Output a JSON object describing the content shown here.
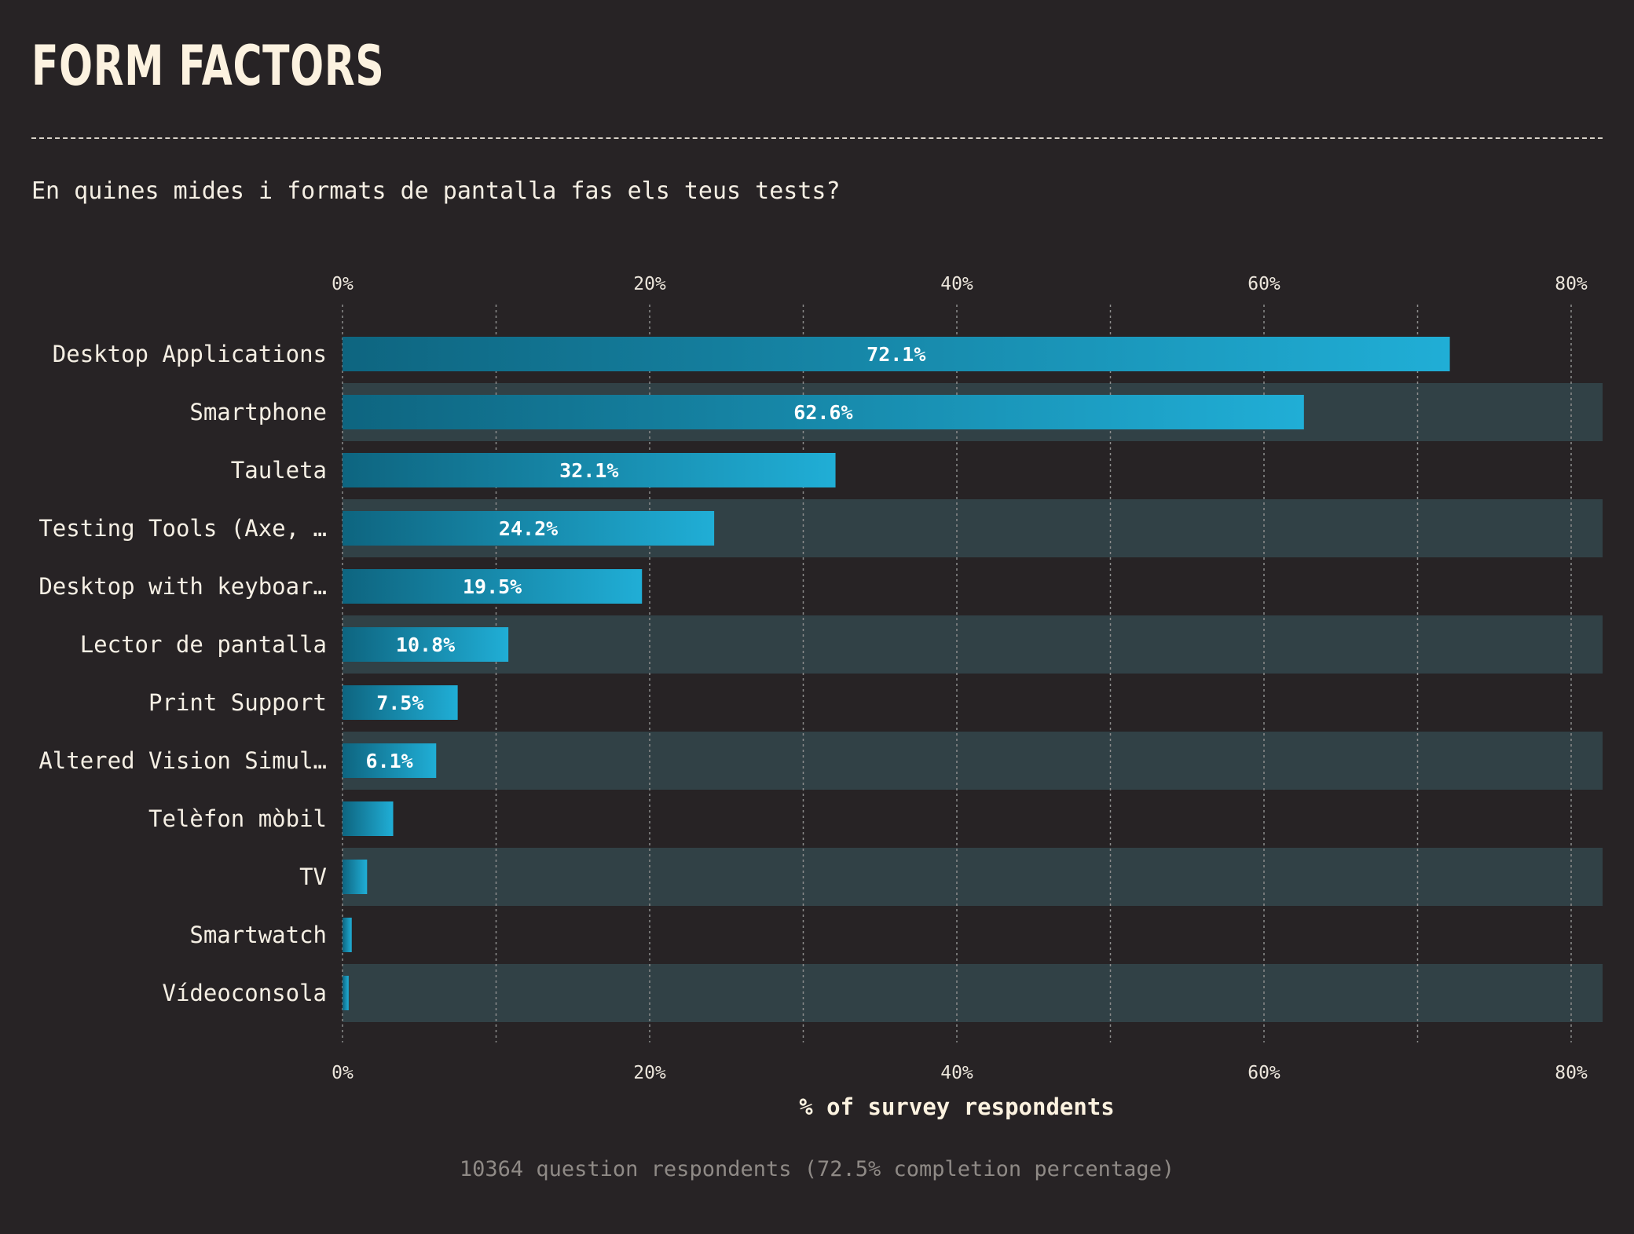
{
  "header": {
    "title": "FORM FACTORS",
    "question": "En quines mides i formats de pantalla fas els teus tests?"
  },
  "footer": {
    "note": "10364 question respondents (72.5% completion percentage)"
  },
  "colors": {
    "background": "#272325",
    "band": "#314146",
    "bar_start": "#0e6580",
    "bar_end": "#20aed6",
    "grid": "#8c8c8c"
  },
  "chart_data": {
    "type": "bar",
    "orientation": "horizontal",
    "categories": [
      "Desktop Applications",
      "Smartphone",
      "Tauleta",
      "Testing Tools (Axe, …",
      "Desktop with keyboar…",
      "Lector de pantalla",
      "Print Support",
      "Altered Vision Simul…",
      "Telèfon mòbil",
      "TV",
      "Smartwatch",
      "Vídeoconsola"
    ],
    "values": [
      72.1,
      62.6,
      32.1,
      24.2,
      19.5,
      10.8,
      7.5,
      6.1,
      3.3,
      1.6,
      0.6,
      0.4
    ],
    "value_labels": [
      "72.1%",
      "62.6%",
      "32.1%",
      "24.2%",
      "19.5%",
      "10.8%",
      "7.5%",
      "6.1%",
      "",
      "",
      "",
      ""
    ],
    "xlim": [
      0,
      82
    ],
    "xticks": [
      0,
      20,
      40,
      60,
      80
    ],
    "xtick_labels": [
      "0%",
      "20%",
      "40%",
      "60%",
      "80%"
    ],
    "minor_grid": [
      10,
      30,
      50,
      70
    ],
    "xlabel": "% of survey respondents",
    "ylabel": "",
    "ticks_top_and_bottom": true,
    "alternating_row_bands": true,
    "grid": true,
    "legend": "none"
  }
}
